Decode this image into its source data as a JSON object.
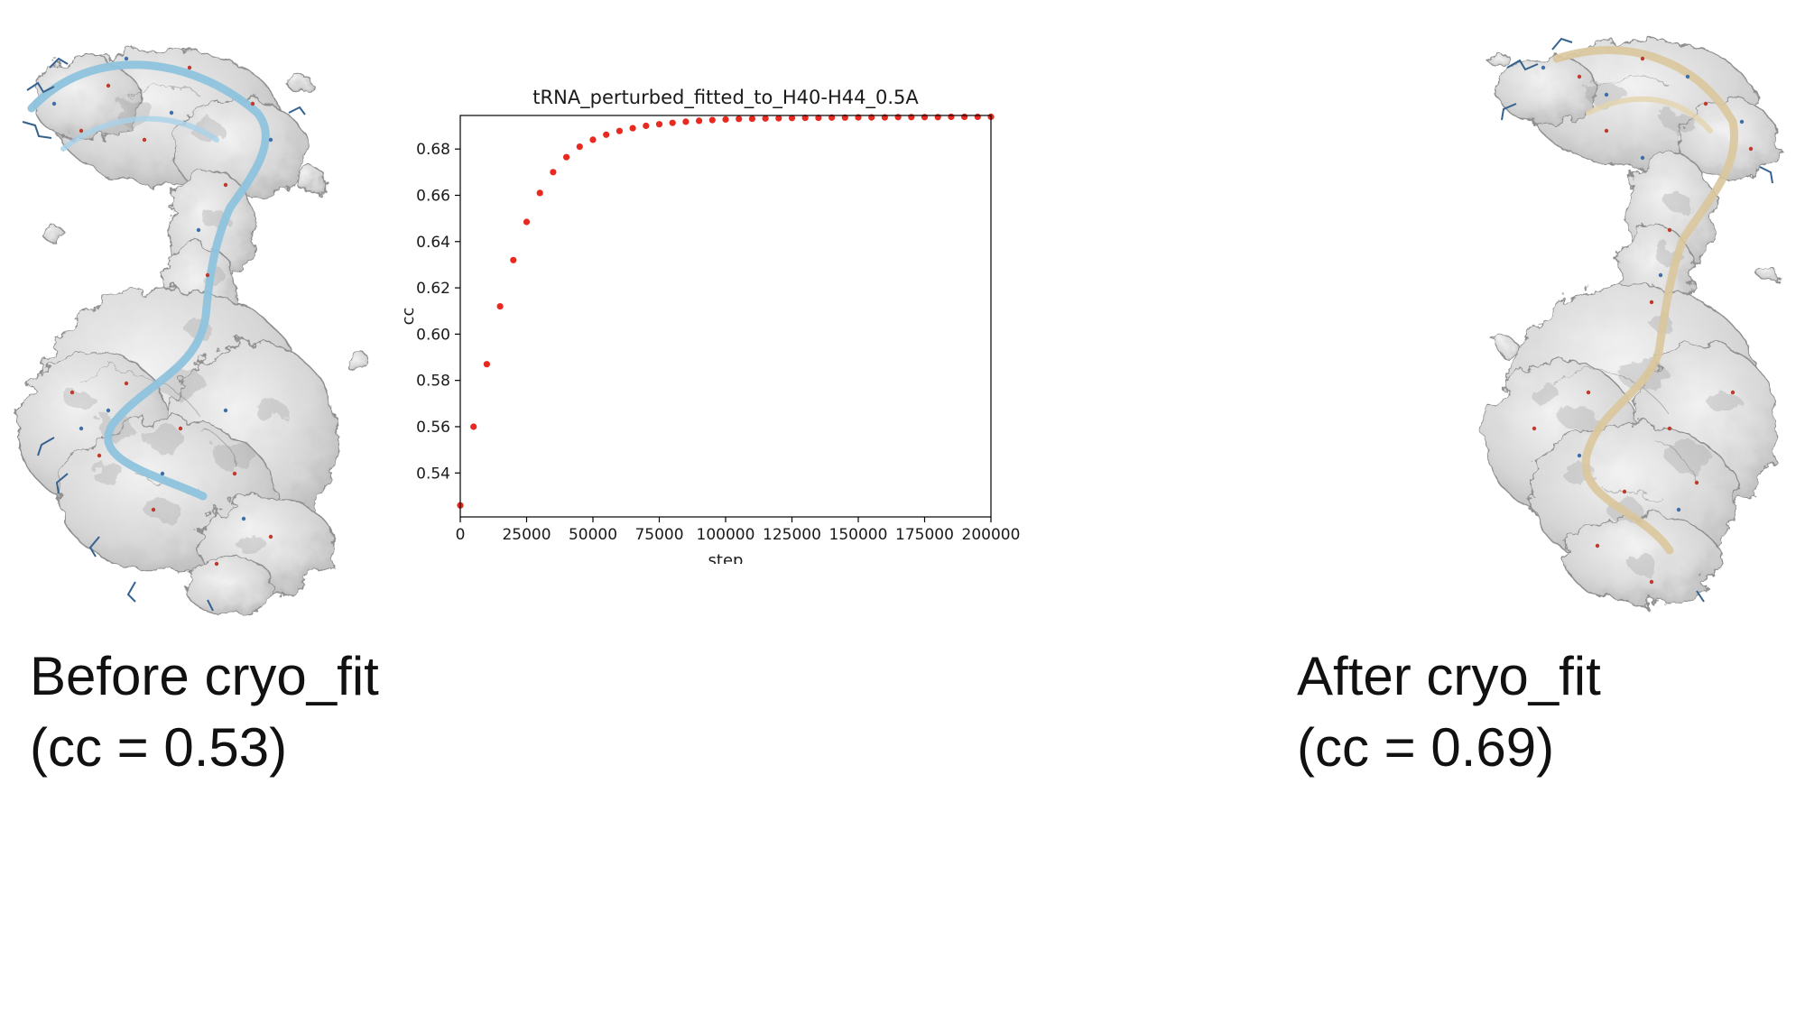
{
  "captions": {
    "before_line1": "Before cryo_fit",
    "before_line2": "(cc = 0.53)",
    "after_line1": "After cryo_fit",
    "after_line2": "(cc = 0.69)"
  },
  "colors": {
    "marker": "#e8291f",
    "before_ribbon": "#8fc3dd",
    "after_ribbon": "#d9c69c",
    "density_gray": "#d6d6d6"
  },
  "chart_data": {
    "type": "scatter",
    "title": "tRNA_perturbed_fitted_to_H40-H44_0.5A",
    "xlabel": "step",
    "ylabel": "cc",
    "xlim": [
      0,
      200000
    ],
    "ylim": [
      0.521,
      0.6945
    ],
    "x_ticks": [
      0,
      25000,
      50000,
      75000,
      100000,
      125000,
      150000,
      175000,
      200000
    ],
    "y_ticks": [
      0.54,
      0.56,
      0.58,
      0.6,
      0.62,
      0.64,
      0.66,
      0.68
    ],
    "grid": false,
    "legend": "none",
    "marker_color": "#e8291f",
    "points": [
      [
        0,
        0.526
      ],
      [
        5000,
        0.56
      ],
      [
        10000,
        0.587
      ],
      [
        15000,
        0.612
      ],
      [
        20000,
        0.632
      ],
      [
        25000,
        0.6485
      ],
      [
        30000,
        0.661
      ],
      [
        35000,
        0.67
      ],
      [
        40000,
        0.6765
      ],
      [
        45000,
        0.681
      ],
      [
        50000,
        0.684
      ],
      [
        55000,
        0.6862
      ],
      [
        60000,
        0.6878
      ],
      [
        65000,
        0.689
      ],
      [
        70000,
        0.69
      ],
      [
        75000,
        0.6907
      ],
      [
        80000,
        0.6913
      ],
      [
        85000,
        0.6918
      ],
      [
        90000,
        0.6922
      ],
      [
        95000,
        0.6925
      ],
      [
        100000,
        0.6928
      ],
      [
        105000,
        0.693
      ],
      [
        110000,
        0.6931
      ],
      [
        115000,
        0.6932
      ],
      [
        120000,
        0.6933
      ],
      [
        125000,
        0.6934
      ],
      [
        130000,
        0.6935
      ],
      [
        135000,
        0.6935
      ],
      [
        140000,
        0.6936
      ],
      [
        145000,
        0.6936
      ],
      [
        150000,
        0.6937
      ],
      [
        155000,
        0.6937
      ],
      [
        160000,
        0.6937
      ],
      [
        165000,
        0.6938
      ],
      [
        170000,
        0.6938
      ],
      [
        175000,
        0.6938
      ],
      [
        180000,
        0.6938
      ],
      [
        185000,
        0.6939
      ],
      [
        190000,
        0.6939
      ],
      [
        195000,
        0.6939
      ],
      [
        200000,
        0.6939
      ]
    ]
  }
}
